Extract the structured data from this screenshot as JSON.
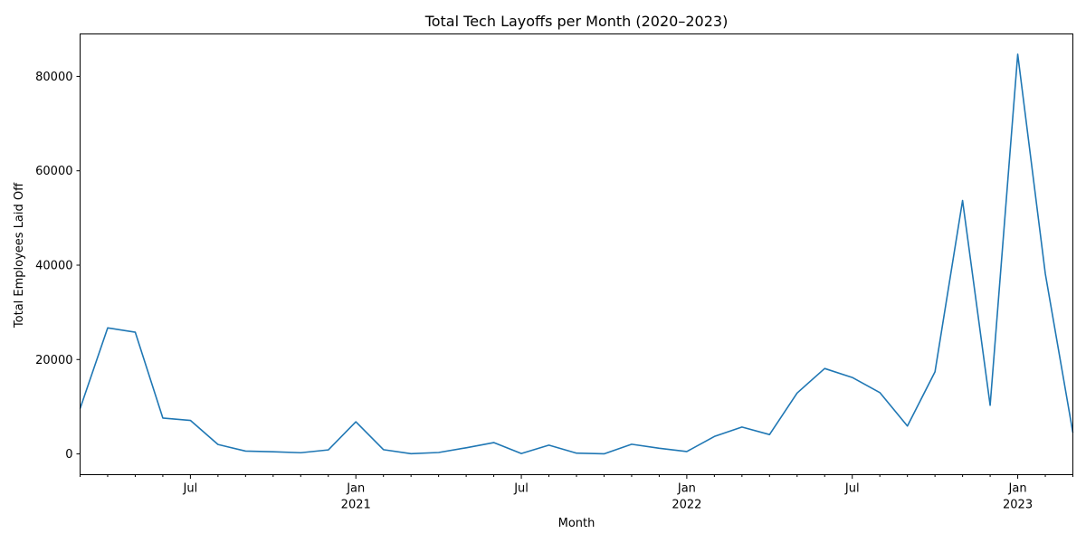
{
  "chart_data": {
    "type": "line",
    "title": "Total Tech Layoffs per Month (2020–2023)",
    "xlabel": "Month",
    "ylabel": "Total Employees Laid Off",
    "ylim": [
      -4400,
      89000
    ],
    "yticks": [
      0,
      20000,
      40000,
      60000,
      80000
    ],
    "grid": false,
    "legend": "none",
    "x_major_ticks": [
      {
        "month": "2020-07",
        "label": "Jul"
      },
      {
        "month": "2021-01",
        "label": "Jan",
        "sublabel": "2021"
      },
      {
        "month": "2021-07",
        "label": "Jul"
      },
      {
        "month": "2022-01",
        "label": "Jan",
        "sublabel": "2022"
      },
      {
        "month": "2022-07",
        "label": "Jul"
      },
      {
        "month": "2023-01",
        "label": "Jan",
        "sublabel": "2023"
      }
    ],
    "series": [
      {
        "color": "#1f77b4",
        "points": [
          {
            "x": "2020-03",
            "y": 9600
          },
          {
            "x": "2020-04",
            "y": 26700
          },
          {
            "x": "2020-05",
            "y": 25800
          },
          {
            "x": "2020-06",
            "y": 7600
          },
          {
            "x": "2020-07",
            "y": 7100
          },
          {
            "x": "2020-08",
            "y": 2000
          },
          {
            "x": "2020-09",
            "y": 600
          },
          {
            "x": "2020-10",
            "y": 450
          },
          {
            "x": "2020-11",
            "y": 250
          },
          {
            "x": "2020-12",
            "y": 850
          },
          {
            "x": "2021-01",
            "y": 6800
          },
          {
            "x": "2021-02",
            "y": 900
          },
          {
            "x": "2021-03",
            "y": 50
          },
          {
            "x": "2021-04",
            "y": 300
          },
          {
            "x": "2021-05",
            "y": 1300
          },
          {
            "x": "2021-06",
            "y": 2400
          },
          {
            "x": "2021-07",
            "y": 80
          },
          {
            "x": "2021-08",
            "y": 1850
          },
          {
            "x": "2021-09",
            "y": 160
          },
          {
            "x": "2021-10",
            "y": 20
          },
          {
            "x": "2021-11",
            "y": 2050
          },
          {
            "x": "2021-12",
            "y": 1200
          },
          {
            "x": "2022-01",
            "y": 500
          },
          {
            "x": "2022-02",
            "y": 3700
          },
          {
            "x": "2022-03",
            "y": 5700
          },
          {
            "x": "2022-04",
            "y": 4100
          },
          {
            "x": "2022-05",
            "y": 12900
          },
          {
            "x": "2022-06",
            "y": 18100
          },
          {
            "x": "2022-07",
            "y": 16200
          },
          {
            "x": "2022-08",
            "y": 13000
          },
          {
            "x": "2022-09",
            "y": 5900
          },
          {
            "x": "2022-10",
            "y": 17400
          },
          {
            "x": "2022-11",
            "y": 53700
          },
          {
            "x": "2022-12",
            "y": 10300
          },
          {
            "x": "2023-01",
            "y": 84700
          },
          {
            "x": "2023-02",
            "y": 38200
          },
          {
            "x": "2023-03",
            "y": 4500
          }
        ]
      }
    ]
  }
}
